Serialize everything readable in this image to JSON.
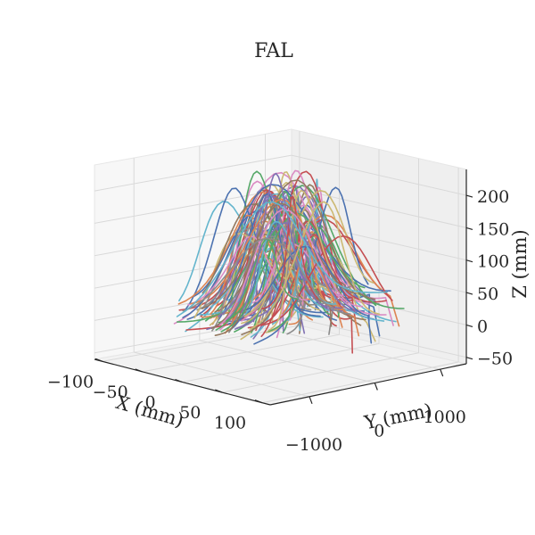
{
  "chart_data": {
    "type": "line3d",
    "title": "FAL",
    "xlabel": "X (mm)",
    "ylabel": "Y (mm)",
    "zlabel": "Z (mm)",
    "xlim": [
      -110,
      110
    ],
    "ylim": [
      -1600,
      1400
    ],
    "zlim": [
      -60,
      240
    ],
    "x_ticks": [
      {
        "value": -100,
        "label": "−100"
      },
      {
        "value": -50,
        "label": "−50"
      },
      {
        "value": 0,
        "label": "0"
      },
      {
        "value": 50,
        "label": "50"
      },
      {
        "value": 100,
        "label": "100"
      }
    ],
    "y_ticks": [
      {
        "value": -1000,
        "label": "−1000"
      },
      {
        "value": 0,
        "label": "0"
      },
      {
        "value": 1000,
        "label": "1000"
      }
    ],
    "z_ticks": [
      {
        "value": -50,
        "label": "−50"
      },
      {
        "value": 0,
        "label": "0"
      },
      {
        "value": 50,
        "label": "50"
      },
      {
        "value": 100,
        "label": "100"
      },
      {
        "value": 150,
        "label": "150"
      },
      {
        "value": 200,
        "label": "200"
      }
    ],
    "grid": true,
    "palette": [
      "#4c72b0",
      "#dd8452",
      "#55a868",
      "#c44e52",
      "#8172b3",
      "#937860",
      "#da8bc3",
      "#8c8c8c",
      "#ccb974",
      "#64b5cd"
    ],
    "series_count": 120,
    "description_note": ""
  }
}
